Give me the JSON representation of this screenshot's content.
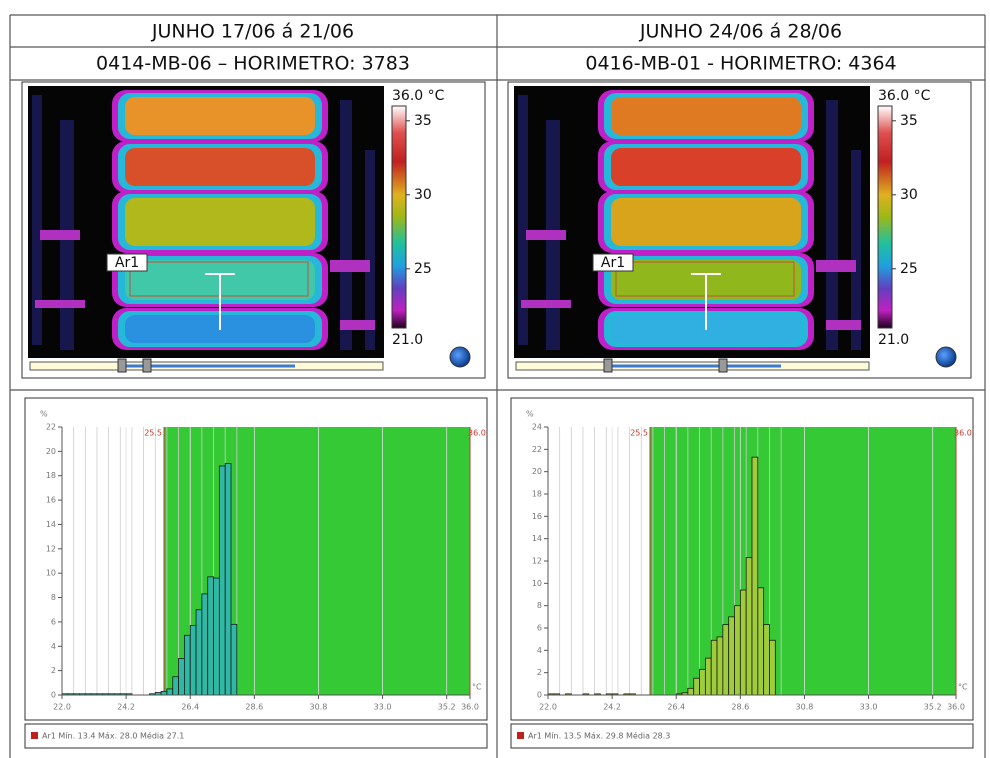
{
  "table": {
    "headers": [
      [
        "JUNHO  17/06 á 21/06",
        "JUNHO 24/06 á 28/06"
      ],
      [
        "0414-MB-06 – HORIMETRO: 3783",
        "0416-MB-01 - HORIMETRO: 4364"
      ]
    ]
  },
  "thermal": [
    {
      "scale": {
        "max_label": "36.0 °C",
        "min_label": "21.0",
        "range": [
          21,
          36
        ],
        "ticks": [
          35,
          30,
          25
        ]
      },
      "area_label": "Ar1"
    },
    {
      "scale": {
        "max_label": "36.0 °C",
        "min_label": "21.0",
        "range": [
          21,
          36
        ],
        "ticks": [
          35,
          30,
          25
        ]
      },
      "area_label": "Ar1"
    }
  ],
  "chart_data": [
    {
      "type": "histogram",
      "y_label": "%",
      "x_label": "°C",
      "bins": [
        22,
        22.2,
        22.4,
        22.6,
        22.8,
        23,
        23.2,
        23.4,
        23.6,
        23.8,
        24,
        24.2,
        24.4,
        24.6,
        24.8,
        25,
        25.2,
        25.4,
        25.6,
        25.8,
        26,
        26.2,
        26.4,
        26.6,
        26.8,
        27,
        27.2,
        27.4,
        27.6,
        27.8,
        28
      ],
      "values": [
        0.1,
        0.1,
        0.1,
        0.1,
        0.1,
        0.1,
        0.1,
        0.1,
        0.1,
        0.1,
        0.1,
        0.1,
        0,
        0,
        0,
        0.1,
        0.2,
        0.3,
        0.5,
        1.5,
        3,
        4.9,
        5.7,
        7,
        8.3,
        9.7,
        9.6,
        18.8,
        19,
        5.8
      ],
      "color": "#2fb8a4",
      "xlim": [
        22,
        36
      ],
      "xticks": [
        {
          "value": 22,
          "label": "22.0"
        },
        24.2,
        26.4,
        28.6,
        30.8,
        {
          "value": 33,
          "label": "33.0"
        },
        35.2,
        {
          "value": 36,
          "label": "36.0"
        }
      ],
      "ylim": [
        0,
        22
      ],
      "yticks": [
        0,
        2,
        4,
        6,
        8,
        10,
        12,
        14,
        16,
        18,
        20,
        22
      ],
      "grid": true,
      "thresholds": [
        {
          "value": 25.5,
          "label": "25.5"
        },
        {
          "value": 36,
          "label": "36.0"
        }
      ],
      "highlight_color": "#35c935",
      "legend": "Ar1 Mín. 13.4 Máx. 28.0 Média 27.1"
    },
    {
      "type": "histogram",
      "y_label": "%",
      "x_label": "°C",
      "bins": [
        22,
        22.2,
        22.4,
        22.6,
        22.8,
        23,
        23.2,
        23.4,
        23.6,
        23.8,
        24,
        24.2,
        24.4,
        24.6,
        24.8,
        25,
        25.2,
        25.4,
        25.6,
        25.8,
        26,
        26.2,
        26.4,
        26.6,
        26.8,
        27,
        27.2,
        27.4,
        27.6,
        27.8,
        28,
        28.2,
        28.4,
        28.6,
        28.8,
        29,
        29.2,
        29.4,
        29.6,
        29.8,
        30
      ],
      "values": [
        0.1,
        0.1,
        0,
        0.1,
        0,
        0,
        0.1,
        0,
        0.1,
        0,
        0.1,
        0.1,
        0,
        0.1,
        0.1,
        0,
        0,
        0,
        0,
        0,
        0,
        0,
        0.1,
        0.2,
        0.6,
        1.5,
        2.3,
        3.3,
        4.9,
        5.2,
        6.3,
        7,
        8,
        9.4,
        12.3,
        21.3,
        9.6,
        6.3,
        4.9,
        0
      ],
      "color": "#9fcc3a",
      "xlim": [
        22,
        36
      ],
      "xticks": [
        {
          "value": 22,
          "label": "22.0"
        },
        24.2,
        26.4,
        28.6,
        30.8,
        {
          "value": 33,
          "label": "33.0"
        },
        35.2,
        {
          "value": 36,
          "label": "36.0"
        }
      ],
      "ylim": [
        0,
        24
      ],
      "yticks": [
        0,
        2,
        4,
        6,
        8,
        10,
        12,
        14,
        16,
        18,
        20,
        22,
        24
      ],
      "grid": true,
      "thresholds": [
        {
          "value": 25.5,
          "label": "25.5"
        },
        {
          "value": 36,
          "label": "36.0"
        }
      ],
      "highlight_color": "#35c935",
      "legend": "Ar1 Mín. 13.5 Máx. 29.8 Média 28.3"
    }
  ]
}
